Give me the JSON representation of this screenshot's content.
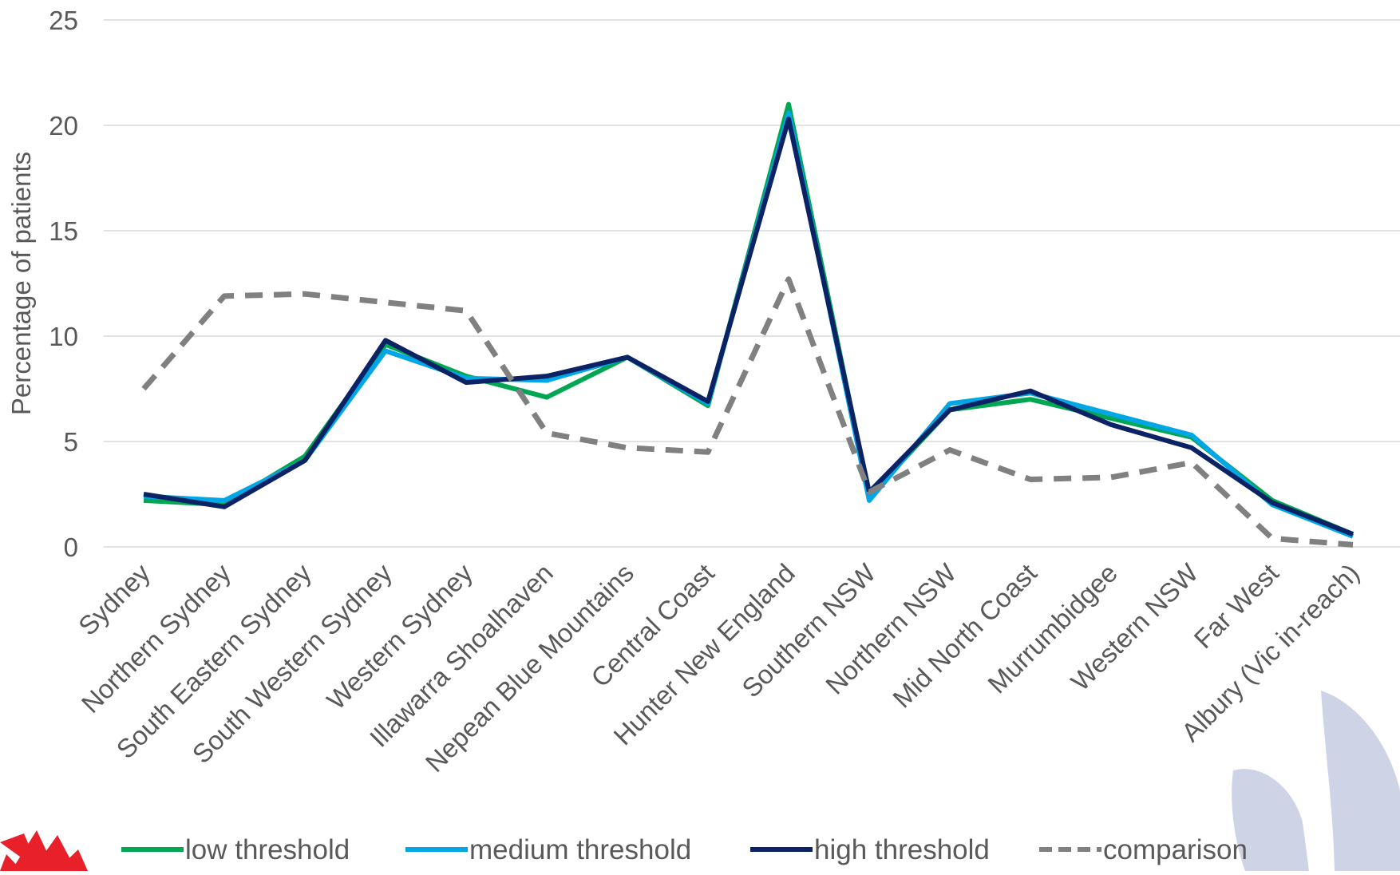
{
  "chart_data": {
    "type": "line",
    "title": "",
    "xlabel": "",
    "ylabel": "Percentage of patients",
    "ylim": [
      0,
      25
    ],
    "yticks": [
      "0",
      "5",
      "10",
      "15",
      "20",
      "25"
    ],
    "grid": "horizontal",
    "legend_position": "bottom",
    "categories": [
      "Sydney",
      "Northern Sydney",
      "South Eastern Sydney",
      "South Western Sydney",
      "Western Sydney",
      "Illawarra Shoalhaven",
      "Nepean Blue Mountains",
      "Central Coast",
      "Hunter New England",
      "Southern NSW",
      "Northern NSW",
      "Mid North Coast",
      "Murrumbidgee",
      "Western NSW",
      "Far West",
      "Albury (Vic in-reach)"
    ],
    "series": [
      {
        "name": "low threshold",
        "color": "#00A651",
        "dash": "solid",
        "values": [
          2.2,
          2.0,
          4.3,
          9.6,
          8.1,
          7.1,
          9.0,
          6.7,
          21.0,
          2.4,
          6.5,
          7.0,
          6.1,
          5.2,
          2.2,
          0.6
        ]
      },
      {
        "name": "medium threshold",
        "color": "#00A6E6",
        "dash": "solid",
        "values": [
          2.4,
          2.2,
          4.1,
          9.3,
          8.0,
          7.9,
          9.0,
          6.8,
          20.6,
          2.2,
          6.8,
          7.3,
          6.3,
          5.3,
          2.0,
          0.5
        ]
      },
      {
        "name": "high threshold",
        "color": "#0B2265",
        "dash": "solid",
        "values": [
          2.5,
          1.9,
          4.1,
          9.8,
          7.8,
          8.1,
          9.0,
          6.9,
          20.3,
          2.6,
          6.5,
          7.4,
          5.8,
          4.7,
          2.1,
          0.6
        ]
      },
      {
        "name": "comparison",
        "color": "#808080",
        "dash": "dashed",
        "values": [
          7.5,
          11.9,
          12.0,
          11.6,
          11.2,
          5.4,
          4.7,
          4.5,
          12.7,
          2.6,
          4.6,
          3.2,
          3.3,
          4.0,
          0.4,
          0.1
        ]
      }
    ],
    "colors": {
      "gridline": "#D9D9D9",
      "axis_text": "#595959",
      "logo_red": "#E8202A",
      "watermark": "#C5CDE0"
    }
  }
}
